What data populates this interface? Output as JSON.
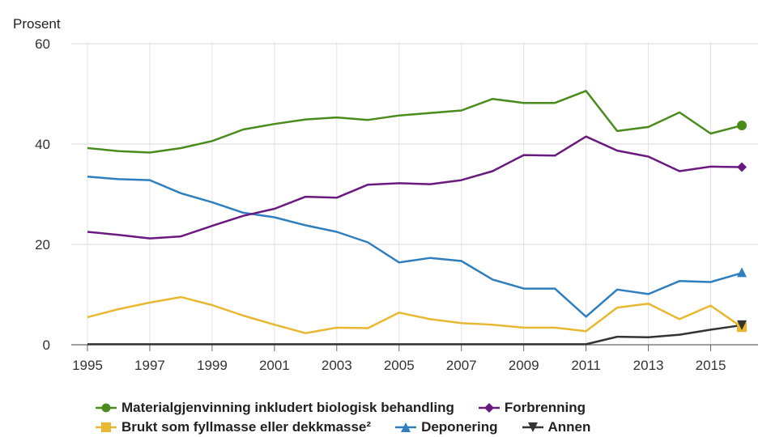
{
  "chart_data": {
    "type": "line",
    "title": "",
    "xlabel": "",
    "ylabel": "Prosent",
    "ylim": [
      0,
      60
    ],
    "yticks": [
      0,
      20,
      40,
      60
    ],
    "xlim": [
      1995,
      2016
    ],
    "xticks": [
      1995,
      1997,
      1999,
      2001,
      2003,
      2005,
      2007,
      2009,
      2011,
      2013,
      2015
    ],
    "grid": true,
    "legend_position": "bottom",
    "x": [
      1995,
      1996,
      1997,
      1998,
      1999,
      2000,
      2001,
      2002,
      2003,
      2004,
      2005,
      2006,
      2007,
      2008,
      2009,
      2010,
      2011,
      2012,
      2013,
      2014,
      2015,
      2016
    ],
    "series": [
      {
        "name": "Materialgjenvinning inkludert biologisk behandling",
        "color": "#4a8c1c",
        "marker": "circle",
        "values": [
          39.2,
          38.6,
          38.3,
          39.2,
          40.6,
          42.9,
          44.0,
          44.9,
          45.3,
          44.8,
          45.7,
          46.2,
          46.7,
          49.0,
          48.2,
          48.2,
          50.6,
          42.6,
          43.4,
          46.3,
          42.1,
          43.7
        ]
      },
      {
        "name": "Forbrenning",
        "color": "#6a1a7e",
        "marker": "diamond",
        "values": [
          22.5,
          21.9,
          21.2,
          21.6,
          23.7,
          25.7,
          27.1,
          29.5,
          29.3,
          31.9,
          32.2,
          32.0,
          32.8,
          34.6,
          37.8,
          37.7,
          41.5,
          38.7,
          37.5,
          34.6,
          35.5,
          35.4
        ]
      },
      {
        "name": "Brukt som fyllmasse eller dekkmasse²",
        "color": "#e8b832",
        "marker": "square",
        "values": [
          5.5,
          7.1,
          8.4,
          9.5,
          7.9,
          5.8,
          4.0,
          2.3,
          3.4,
          3.3,
          6.4,
          5.1,
          4.3,
          4.0,
          3.4,
          3.4,
          2.7,
          7.4,
          8.2,
          5.1,
          7.8,
          3.5
        ]
      },
      {
        "name": "Deponering",
        "color": "#2f7ebd",
        "marker": "triangle",
        "values": [
          33.5,
          33.0,
          32.8,
          30.2,
          28.4,
          26.3,
          25.4,
          23.8,
          22.5,
          20.4,
          16.4,
          17.3,
          16.7,
          13.0,
          11.2,
          11.2,
          5.6,
          11.0,
          10.1,
          12.7,
          12.5,
          14.3
        ]
      },
      {
        "name": "Annen",
        "color": "#333333",
        "marker": "triangle-down",
        "values": [
          0.1,
          0.1,
          0.1,
          0.1,
          0.1,
          0.1,
          0.1,
          0.1,
          0.1,
          0.1,
          0.1,
          0.1,
          0.1,
          0.1,
          0.1,
          0.1,
          0.1,
          1.6,
          1.5,
          2.0,
          3.0,
          3.9
        ]
      }
    ]
  }
}
